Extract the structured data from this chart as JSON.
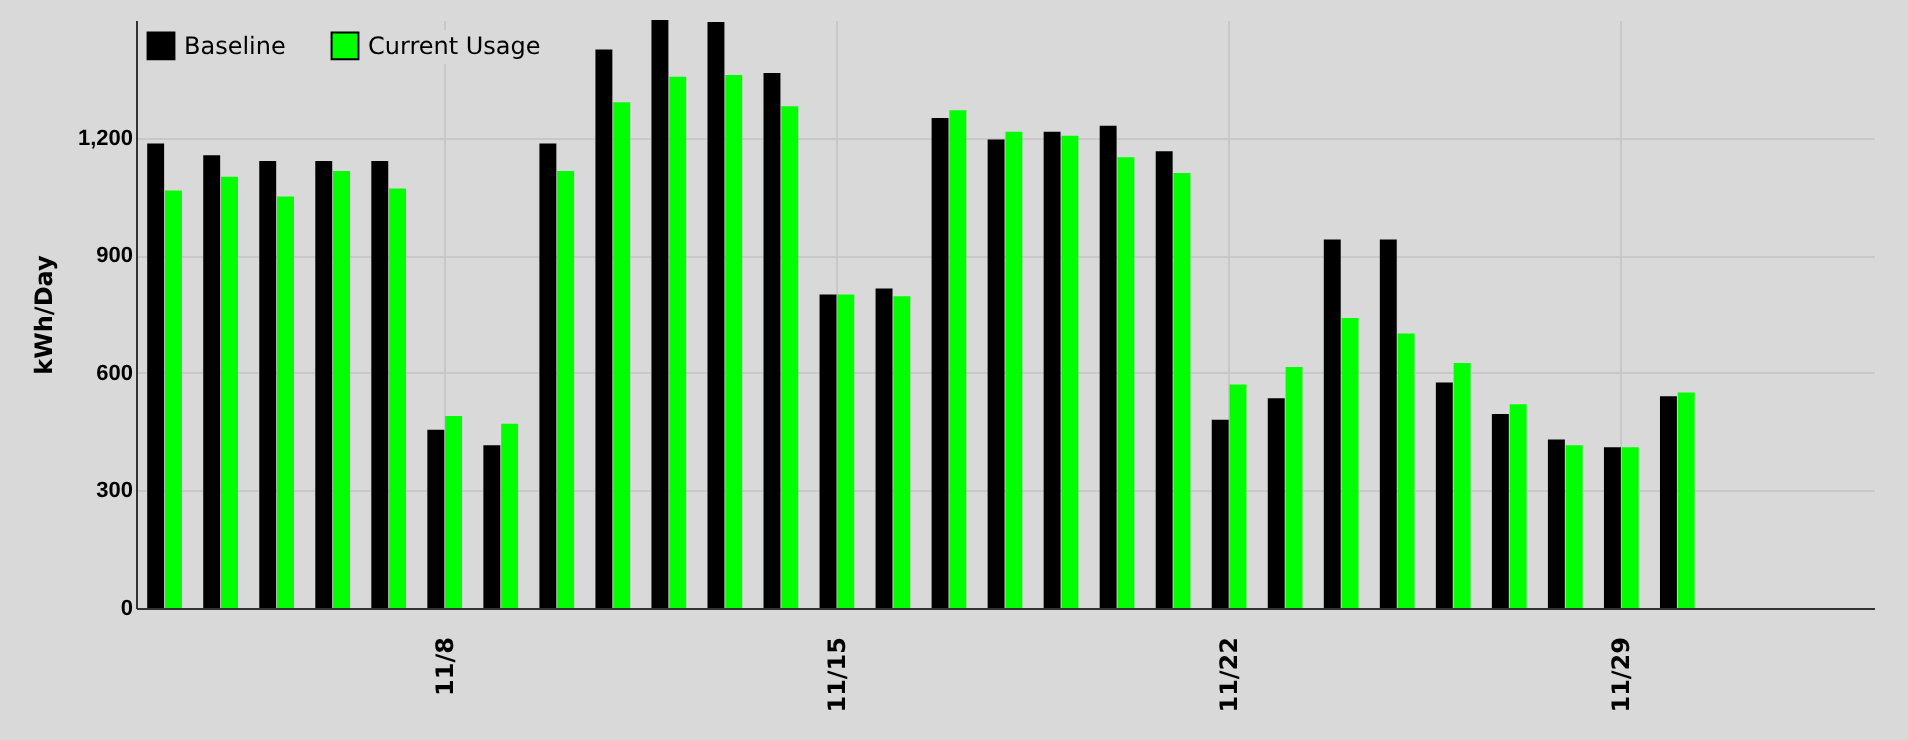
{
  "chart_data": {
    "type": "bar",
    "ylabel": "kWh/Day",
    "categories": [
      null,
      null,
      null,
      null,
      null,
      "11/8",
      null,
      null,
      null,
      null,
      null,
      null,
      "11/15",
      null,
      null,
      null,
      null,
      null,
      null,
      "11/22",
      null,
      null,
      null,
      null,
      null,
      null,
      "11/29",
      null,
      null,
      null,
      null
    ],
    "series": [
      {
        "name": "Baseline",
        "color": "#000000",
        "values": [
          1185,
          1155,
          1140,
          1140,
          1140,
          455,
          415,
          1185,
          1425,
          1500,
          1495,
          1365,
          800,
          815,
          1250,
          1195,
          1215,
          1230,
          1165,
          480,
          535,
          940,
          940,
          575,
          495,
          430,
          410,
          540,
          null,
          null,
          null
        ]
      },
      {
        "name": "Current Usage",
        "color": "#00ff00",
        "values": [
          1065,
          1100,
          1050,
          1115,
          1070,
          490,
          470,
          1115,
          1290,
          1355,
          1360,
          1280,
          800,
          795,
          1270,
          1215,
          1205,
          1150,
          1110,
          570,
          615,
          740,
          700,
          625,
          520,
          415,
          410,
          550,
          null,
          null,
          null
        ]
      }
    ],
    "ylim": [
      0,
      1500
    ],
    "yticks": [
      0,
      300,
      600,
      900,
      {
        "value": 1200,
        "label": "1,200"
      }
    ],
    "grid": true,
    "legend": "top left"
  }
}
